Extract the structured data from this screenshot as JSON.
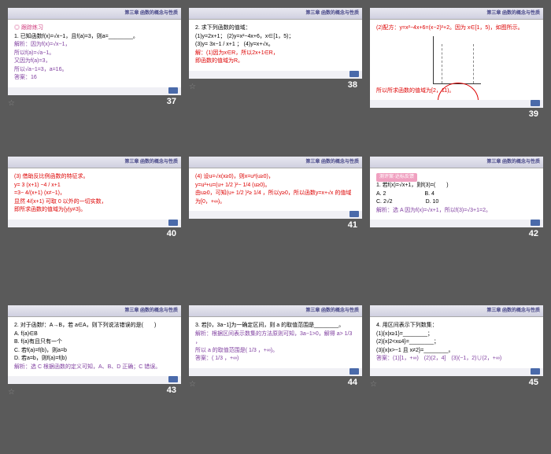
{
  "header_text": "第三章 函数的概念与性质",
  "slides": [
    {
      "num": "37",
      "star": true,
      "lines": [
        {
          "cls": "pink",
          "t": "◎ 跟踪练习"
        },
        {
          "cls": "black",
          "t": "1. 已知函数f(x)=√x−1，且f(a)=3，则a=________。"
        },
        {
          "cls": "purple",
          "t": "解析：因为f(x)=√x−1，"
        },
        {
          "cls": "purple",
          "t": "所以f(a)=√a−1。"
        },
        {
          "cls": "purple",
          "t": "又因为f(a)=3，"
        },
        {
          "cls": "purple",
          "t": "所以√a−1=3，a=16。"
        },
        {
          "cls": "purple",
          "t": "答案：16"
        }
      ]
    },
    {
      "num": "38",
      "star": true,
      "lines": [
        {
          "cls": "black",
          "t": "2. 求下列函数的值域："
        },
        {
          "cls": "black",
          "t": "(1)y=2x+1；  (2)y=x²−4x+6，x∈[1，5)；"
        },
        {
          "cls": "black",
          "t": "(3)y= 3x−1 / x+1 ；  (4)y=x+√x。"
        },
        {
          "cls": "red",
          "t": "解：(1)因为x∈R，所以2x+1∈R，"
        },
        {
          "cls": "red",
          "t": "即函数的值域为R。"
        }
      ]
    },
    {
      "num": "39",
      "star": false,
      "chart": true,
      "lines": [
        {
          "cls": "red",
          "t": "(2)配方：y=x²−4x+6=(x−2)²+2。因为 x∈[1，5)，如图所示。"
        },
        {
          "cls": "red",
          "t": ""
        },
        {
          "cls": "red",
          "t": "所以所求函数的值域为[2，11)。"
        }
      ]
    },
    {
      "num": "40",
      "star": false,
      "lines": [
        {
          "cls": "red",
          "t": "(3) 借助反比例函数的特征求。"
        },
        {
          "cls": "red",
          "t": "y= 3 (x+1) −4 / x+1"
        },
        {
          "cls": "red",
          "t": "=3− 4/(x+1) (x≠−1)，"
        },
        {
          "cls": "red",
          "t": "显然 4/(x+1) 可取 0 以外的一切实数，"
        },
        {
          "cls": "red",
          "t": "即所求函数的值域为{y|y≠3}。"
        }
      ]
    },
    {
      "num": "41",
      "star": false,
      "lines": [
        {
          "cls": "red",
          "t": "(4) 设u=√x(x≥0)，则x=u²(u≥0)，"
        },
        {
          "cls": "red",
          "t": "y=u²+u=(u+ 1/2 )²− 1/4 (u≥0)。"
        },
        {
          "cls": "red",
          "t": "由u≥0，可知(u+ 1/2 )²≥ 1/4 ，所以y≥0，所以函数y=x+√x 的值域为[0，+∞)。"
        }
      ]
    },
    {
      "num": "42",
      "star": false,
      "section": "测评案·达标反馈",
      "lines": [
        {
          "cls": "black",
          "t": "1. 若f(x)=√x+1，则f(3)=(　　)"
        },
        {
          "cls": "black",
          "t": "A. 2　　　　　　　B. 4"
        },
        {
          "cls": "black",
          "t": "C. 2√2　　　　　　D. 10"
        },
        {
          "cls": "purple",
          "t": "解析：选 A 因为f(x)=√x+1，所以f(3)=√3+1=2。"
        }
      ]
    },
    {
      "num": "43",
      "star": true,
      "lines": [
        {
          "cls": "black",
          "t": "2. 对于函数f：A→B，若 a∈A，则下列说法错误的是(　　)"
        },
        {
          "cls": "black",
          "t": "A. f(a)∈B"
        },
        {
          "cls": "black",
          "t": "B. f(a)有且只有一个"
        },
        {
          "cls": "black",
          "t": "C. 若f(a)=f(b)，则a=b"
        },
        {
          "cls": "black",
          "t": "D. 若a=b，则f(a)=f(b)"
        },
        {
          "cls": "purple",
          "t": "解析：选 C 根据函数的定义可知，A、B、D 正确；C 错误。"
        }
      ]
    },
    {
      "num": "44",
      "star": true,
      "lines": [
        {
          "cls": "black",
          "t": "3. 若[0，3a−1]为一确定区间，则 a 的取值范围是________。"
        },
        {
          "cls": "purple",
          "t": "解析：根据区间表示数集的方法原则可知，3a−1>0，解得 a> 1/3 ，"
        },
        {
          "cls": "purple",
          "t": "所以 a 的取值范围是( 1/3 ，+∞)。"
        },
        {
          "cls": "purple",
          "t": "答案：( 1/3 ，+∞)"
        }
      ]
    },
    {
      "num": "45",
      "star": true,
      "lines": [
        {
          "cls": "black",
          "t": "4. 用区间表示下列数集："
        },
        {
          "cls": "black",
          "t": "(1){x|x≥1}=________；"
        },
        {
          "cls": "black",
          "t": "(2){x|2<x≤4}=________；"
        },
        {
          "cls": "black",
          "t": "(3){x|x>−1 且 x≠2}=________。"
        },
        {
          "cls": "purple",
          "t": "答案：(1)[1，+∞)　(2)(2，4]　(3)(−1，2)∪(2，+∞)"
        }
      ]
    }
  ]
}
